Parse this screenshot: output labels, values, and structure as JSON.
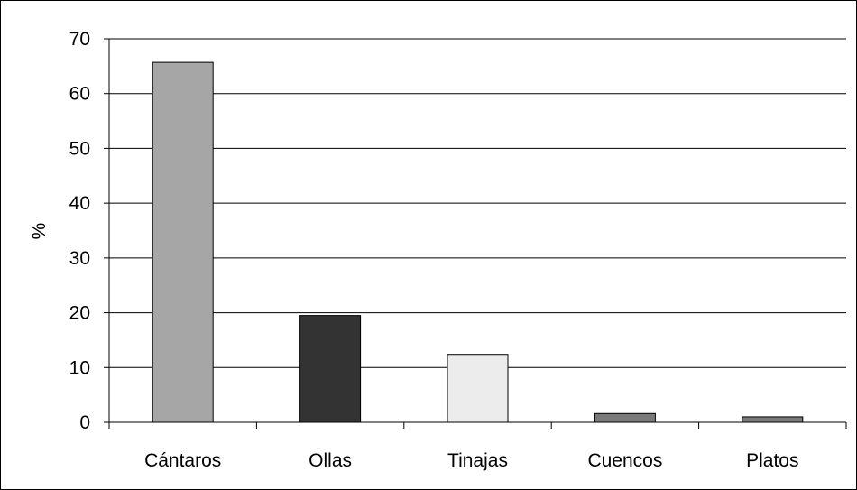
{
  "chart_data": {
    "type": "bar",
    "title": "",
    "xlabel": "",
    "ylabel": "%",
    "ylim": [
      0,
      70
    ],
    "yticks": [
      0,
      10,
      20,
      30,
      40,
      50,
      60,
      70
    ],
    "categories": [
      "Cántaros",
      "Ollas",
      "Tinajas",
      "Cuencos",
      "Platos"
    ],
    "values": [
      65.7,
      19.5,
      12.4,
      1.6,
      1.0
    ],
    "bar_colors": [
      "#a6a6a6",
      "#333333",
      "#ececec",
      "#7a7a7a",
      "#7a7a7a"
    ],
    "grid": true,
    "legend": "none"
  }
}
